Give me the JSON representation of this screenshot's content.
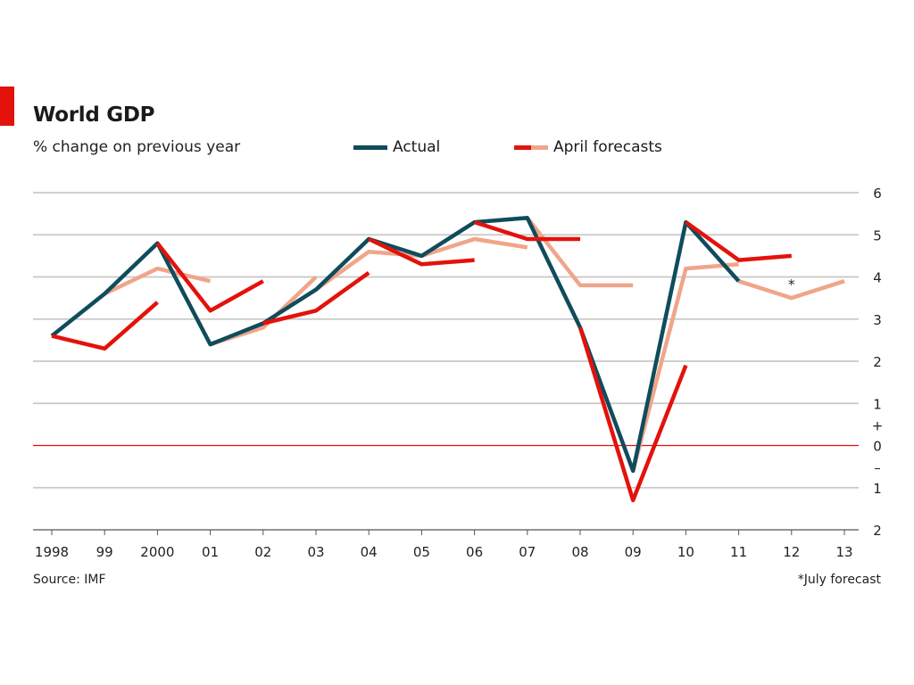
{
  "title": "World GDP",
  "subtitle": "% change on previous year",
  "legend": {
    "actual": "Actual",
    "april": "April forecasts"
  },
  "source": "Source: IMF",
  "footnote": "*July forecast",
  "asterisk": "*",
  "colors": {
    "actual": "#0f4c5c",
    "forecast_red": "#e3120b",
    "forecast_pink": "#f0a58a",
    "grid": "#c8c8c8",
    "zero_line": "#e3120b",
    "accent_tab": "#e3120b"
  },
  "chart_data": {
    "type": "line",
    "title": "World GDP",
    "subtitle": "% change on previous year",
    "x_tick_labels": [
      "1998",
      "99",
      "2000",
      "01",
      "02",
      "03",
      "04",
      "05",
      "06",
      "07",
      "08",
      "09",
      "10",
      "11",
      "12",
      "13"
    ],
    "y_tick_labels": [
      {
        "value": 6,
        "label": "6"
      },
      {
        "value": 5,
        "label": "5"
      },
      {
        "value": 4,
        "label": "4"
      },
      {
        "value": 3,
        "label": "3"
      },
      {
        "value": 2,
        "label": "2"
      },
      {
        "value": 1,
        "label": "1"
      },
      {
        "value": 0,
        "label": "0"
      },
      {
        "value": -1,
        "label": "1"
      },
      {
        "value": -2,
        "label": "2"
      }
    ],
    "plus_minus": {
      "plus": "+",
      "minus": "–"
    },
    "ylim": [
      -2,
      6
    ],
    "xlim": [
      1998,
      2013
    ],
    "grid": true,
    "legend_position": "top",
    "series": [
      {
        "name": "Actual",
        "color": "actual",
        "segments": [
          [
            [
              1998,
              2.6
            ],
            [
              1999,
              3.6
            ],
            [
              2000,
              4.8
            ],
            [
              2001,
              2.4
            ],
            [
              2002,
              2.9
            ],
            [
              2003,
              3.7
            ],
            [
              2004,
              4.9
            ],
            [
              2005,
              4.5
            ],
            [
              2006,
              5.3
            ],
            [
              2007,
              5.4
            ],
            [
              2008,
              2.8
            ],
            [
              2009,
              -0.6
            ],
            [
              2010,
              5.3
            ],
            [
              2011,
              3.9
            ]
          ]
        ]
      },
      {
        "name": "April forecasts (light)",
        "color": "forecast_pink",
        "segments": [
          [
            [
              1999,
              3.6
            ],
            [
              2000,
              4.2
            ],
            [
              2001,
              3.9
            ]
          ],
          [
            [
              2001,
              2.4
            ],
            [
              2002,
              2.8
            ],
            [
              2003,
              4.0
            ]
          ],
          [
            [
              2003,
              3.7
            ],
            [
              2004,
              4.6
            ],
            [
              2005,
              4.5
            ],
            [
              2006,
              4.9
            ],
            [
              2007,
              4.7
            ]
          ],
          [
            [
              2007,
              5.4
            ],
            [
              2008,
              3.8
            ],
            [
              2009,
              3.8
            ]
          ],
          [
            [
              2009,
              -0.6
            ],
            [
              2010,
              4.2
            ],
            [
              2011,
              4.3
            ]
          ],
          [
            [
              2011,
              3.9
            ],
            [
              2012,
              3.5
            ],
            [
              2013,
              3.9
            ]
          ]
        ]
      },
      {
        "name": "April forecasts (red)",
        "color": "forecast_red",
        "segments": [
          [
            [
              1998,
              2.6
            ],
            [
              1999,
              2.3
            ],
            [
              2000,
              3.4
            ]
          ],
          [
            [
              2000,
              4.8
            ],
            [
              2001,
              3.2
            ],
            [
              2002,
              3.9
            ]
          ],
          [
            [
              2002,
              2.9
            ],
            [
              2003,
              3.2
            ],
            [
              2004,
              4.1
            ]
          ],
          [
            [
              2004,
              4.9
            ],
            [
              2005,
              4.3
            ],
            [
              2006,
              4.4
            ]
          ],
          [
            [
              2006,
              5.3
            ],
            [
              2007,
              4.9
            ],
            [
              2008,
              4.9
            ]
          ],
          [
            [
              2008,
              2.8
            ],
            [
              2009,
              -1.3
            ],
            [
              2010,
              1.9
            ]
          ],
          [
            [
              2010,
              5.3
            ],
            [
              2011,
              4.4
            ],
            [
              2012,
              4.5
            ]
          ]
        ]
      }
    ],
    "annotations": [
      {
        "x": 2012,
        "y": 3.5,
        "text": "*"
      }
    ]
  }
}
